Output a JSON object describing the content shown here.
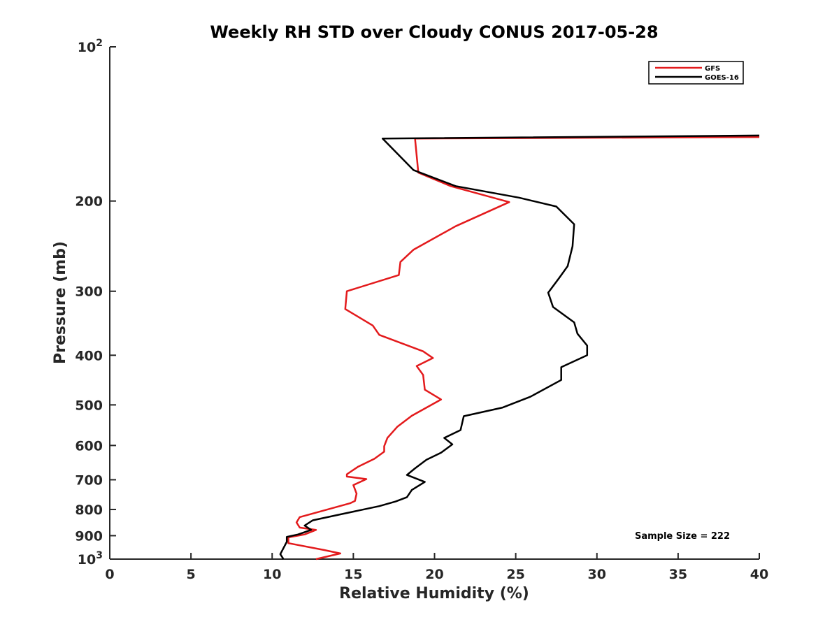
{
  "chart_data": {
    "type": "line",
    "title": "Weekly RH STD over Cloudy CONUS 2017-05-28",
    "xlabel": "Relative Humidity (%)",
    "ylabel": "Pressure (mb)",
    "xlim": [
      0,
      40
    ],
    "ylim": [
      1000,
      100
    ],
    "y_scale": "log",
    "y_reversed": true,
    "grid": false,
    "legend_position": "top-right",
    "x_ticks": [
      0,
      5,
      10,
      15,
      20,
      25,
      30,
      35,
      40
    ],
    "x_tick_labels": [
      "0",
      "5",
      "10",
      "15",
      "20",
      "25",
      "30",
      "35",
      "40"
    ],
    "y_ticks": [
      100,
      200,
      300,
      400,
      500,
      600,
      700,
      800,
      900,
      1000
    ],
    "y_tick_labels": [
      "10^2",
      "200",
      "300",
      "400",
      "500",
      "600",
      "700",
      "800",
      "900",
      "10^3"
    ],
    "annotation": "Sample Size = 222",
    "series": [
      {
        "name": "GFS",
        "color": "#e31a1c",
        "points": [
          [
            40.0,
            150
          ],
          [
            18.8,
            151
          ],
          [
            19.0,
            176
          ],
          [
            21.0,
            187
          ],
          [
            24.6,
            201
          ],
          [
            21.3,
            224
          ],
          [
            18.7,
            249
          ],
          [
            17.9,
            263
          ],
          [
            17.8,
            279
          ],
          [
            14.6,
            300
          ],
          [
            14.5,
            325
          ],
          [
            16.2,
            350
          ],
          [
            16.6,
            365
          ],
          [
            19.3,
            393
          ],
          [
            19.9,
            405
          ],
          [
            18.9,
            420
          ],
          [
            19.3,
            437
          ],
          [
            19.4,
            467
          ],
          [
            20.4,
            488
          ],
          [
            18.6,
            525
          ],
          [
            17.7,
            552
          ],
          [
            17.1,
            580
          ],
          [
            16.9,
            602
          ],
          [
            16.9,
            617
          ],
          [
            16.3,
            637
          ],
          [
            15.3,
            660
          ],
          [
            14.6,
            683
          ],
          [
            14.6,
            690
          ],
          [
            15.8,
            698
          ],
          [
            15.0,
            717
          ],
          [
            15.2,
            745
          ],
          [
            15.1,
            770
          ],
          [
            14.8,
            778
          ],
          [
            11.7,
            828
          ],
          [
            11.5,
            848
          ],
          [
            11.7,
            868
          ],
          [
            12.7,
            877
          ],
          [
            12.0,
            895
          ],
          [
            11.0,
            907
          ],
          [
            11.0,
            931
          ],
          [
            13.2,
            960
          ],
          [
            14.2,
            975
          ],
          [
            12.7,
            1000
          ]
        ]
      },
      {
        "name": "GOES-16",
        "color": "#000000",
        "points": [
          [
            40.0,
            149
          ],
          [
            16.8,
            151
          ],
          [
            18.7,
            174
          ],
          [
            21.3,
            187
          ],
          [
            25.2,
            197
          ],
          [
            27.5,
            205
          ],
          [
            28.6,
            222
          ],
          [
            28.5,
            245
          ],
          [
            28.2,
            268
          ],
          [
            27.7,
            282
          ],
          [
            27.0,
            302
          ],
          [
            27.3,
            322
          ],
          [
            28.6,
            345
          ],
          [
            28.8,
            363
          ],
          [
            29.4,
            383
          ],
          [
            29.4,
            400
          ],
          [
            27.8,
            422
          ],
          [
            27.8,
            447
          ],
          [
            25.9,
            482
          ],
          [
            24.2,
            506
          ],
          [
            21.8,
            526
          ],
          [
            21.6,
            560
          ],
          [
            20.6,
            580
          ],
          [
            21.1,
            597
          ],
          [
            20.4,
            620
          ],
          [
            19.5,
            640
          ],
          [
            18.8,
            665
          ],
          [
            18.3,
            685
          ],
          [
            19.4,
            707
          ],
          [
            18.6,
            733
          ],
          [
            18.3,
            757
          ],
          [
            17.6,
            772
          ],
          [
            16.6,
            788
          ],
          [
            14.2,
            818
          ],
          [
            12.5,
            840
          ],
          [
            12.0,
            860
          ],
          [
            12.4,
            877
          ],
          [
            11.6,
            895
          ],
          [
            10.9,
            905
          ],
          [
            10.9,
            925
          ],
          [
            10.5,
            978
          ],
          [
            10.7,
            1000
          ]
        ]
      }
    ]
  }
}
